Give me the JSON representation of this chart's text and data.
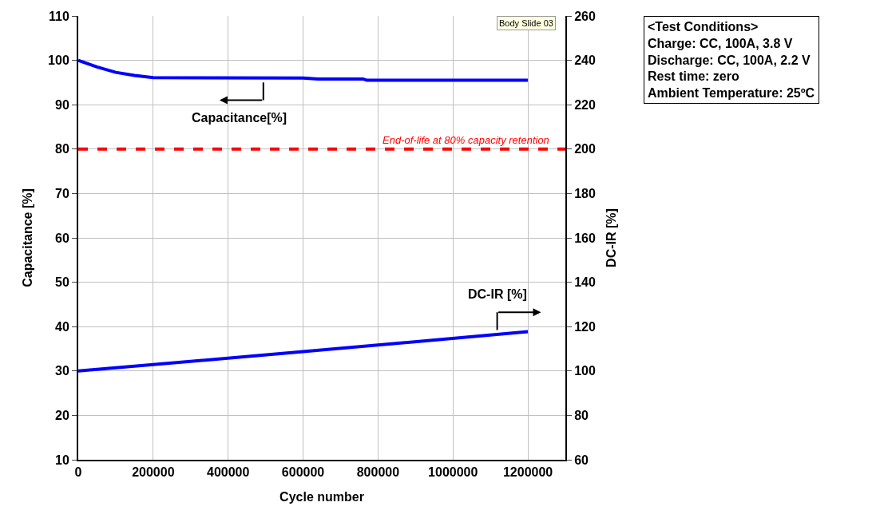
{
  "chart_data": {
    "type": "line",
    "xlabel": "Cycle number",
    "ylabel": "Capacitance [%]",
    "y2label": "DC-IR [%]",
    "xlim": [
      0,
      1300000
    ],
    "xticks": [
      0,
      200000,
      400000,
      600000,
      800000,
      1000000,
      1200000
    ],
    "ylim": [
      10,
      110
    ],
    "yticks": [
      10,
      20,
      30,
      40,
      50,
      60,
      70,
      80,
      90,
      100,
      110
    ],
    "y2lim": [
      60,
      260
    ],
    "y2ticks": [
      60,
      80,
      100,
      120,
      140,
      160,
      180,
      200,
      220,
      240,
      260
    ],
    "series": [
      {
        "name": "Capacitance[%]",
        "color": "#0000ff",
        "x": [
          0,
          50000,
          100000,
          150000,
          200000,
          600000,
          640000,
          760000,
          770000,
          1200000
        ],
        "values": [
          100,
          98.5,
          97.3,
          96.6,
          96.1,
          96,
          95.8,
          95.8,
          95.5,
          95.5
        ]
      },
      {
        "name": "DC-IR [%]",
        "color": "#0000ff",
        "axis": "y2",
        "x": [
          0,
          600000,
          1200000
        ],
        "values": [
          100,
          108.7,
          117.7
        ]
      }
    ],
    "ref_lines": [
      {
        "axis": "y",
        "value": 80,
        "label": "End-of-life at 80% capacity retention",
        "color": "#ff0000",
        "line_style": "dashed"
      }
    ],
    "annotations": [
      "Body Slide 03",
      "<Test Conditions>\nCharge: CC, 100A, 3.8 V\nDischarge: CC, 100A, 2.2 V\nRest time: zero\nAmbient Temperature: 25ºC"
    ],
    "grid": true,
    "legend": false,
    "marker": "none",
    "line_style": "solid"
  }
}
